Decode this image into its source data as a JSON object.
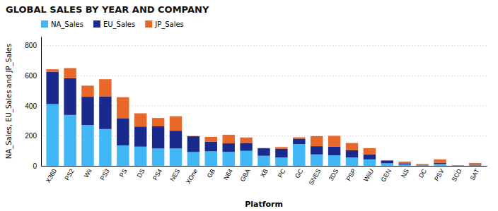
{
  "chart_data": {
    "type": "bar",
    "stacked": true,
    "title": "GLOBAL SALES BY YEAR AND COMPANY",
    "xlabel": "Platform",
    "ylabel": "NA_Sales, EU_Sales and JP_Sales",
    "categories": [
      "X360",
      "PS2",
      "Wii",
      "PS3",
      "PS",
      "DS",
      "PS4",
      "NES",
      "XOne",
      "GB",
      "N64",
      "GBA",
      "XB",
      "PC",
      "GC",
      "SNES",
      "3DS",
      "PSP",
      "WiiU",
      "GEN",
      "NS",
      "DC",
      "PSV",
      "SCD",
      "SAT"
    ],
    "series": [
      {
        "name": "NA_Sales",
        "color": "#41B8F5",
        "values": [
          411,
          339,
          272,
          245,
          136,
          128,
          116,
          116,
          92,
          97,
          93,
          100,
          67,
          56,
          145,
          76,
          70,
          56,
          43,
          17,
          9,
          2,
          12,
          2,
          2
        ]
      },
      {
        "name": "EU_Sales",
        "color": "#1A2A8C",
        "values": [
          215,
          245,
          188,
          218,
          179,
          134,
          147,
          118,
          105,
          65,
          57,
          53,
          50,
          57,
          36,
          55,
          58,
          48,
          34,
          16,
          8,
          2,
          9,
          1,
          2
        ]
      },
      {
        "name": "JP_Sales",
        "color": "#E8682A",
        "values": [
          17,
          67,
          74,
          114,
          142,
          88,
          56,
          96,
          2,
          31,
          57,
          36,
          2,
          12,
          9,
          67,
          72,
          48,
          41,
          5,
          11,
          8,
          22,
          1,
          15
        ]
      }
    ],
    "ylim": [
      0,
      860
    ],
    "yticks": [
      0,
      200,
      400,
      600,
      800
    ],
    "grid": true,
    "legend": "upper left"
  }
}
